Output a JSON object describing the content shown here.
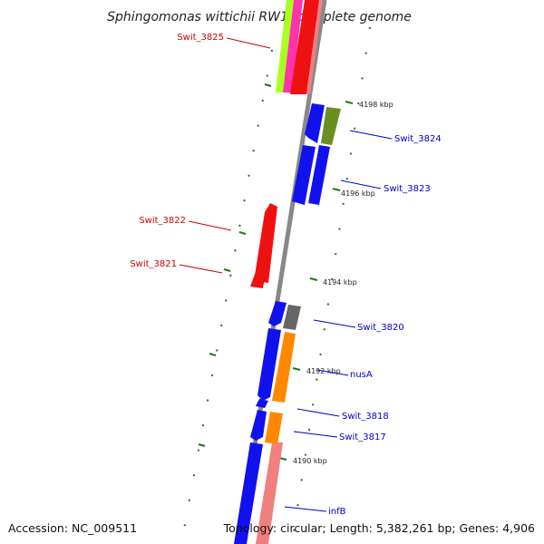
{
  "title": "Sphingomonas wittichii RW1, complete genome",
  "footer": {
    "accession": "Accession: NC_009511",
    "summary": "Topology: circular; Length: 5,382,261 bp; Genes: 4,906"
  },
  "ticks": [
    "4198 kbp",
    "4196 kbp",
    "4194 kbp",
    "4192 kbp",
    "4190 kbp"
  ],
  "genes": [
    {
      "name": "Swit_3825",
      "strand": "minus",
      "color": "#ee1111"
    },
    {
      "name": "Swit_3824",
      "strand": "plus",
      "color": "#1111ee"
    },
    {
      "name": "Swit_3823",
      "strand": "plus",
      "color": "#1111ee"
    },
    {
      "name": "Swit_3822",
      "strand": "minus",
      "color": "#ee1111"
    },
    {
      "name": "Swit_3821",
      "strand": "minus",
      "color": "#ee1111"
    },
    {
      "name": "Swit_3820",
      "strand": "plus",
      "color": "#1111ee"
    },
    {
      "name": "nusA",
      "strand": "plus",
      "color": "#1111ee"
    },
    {
      "name": "Swit_3818",
      "strand": "plus",
      "color": "#1111ee"
    },
    {
      "name": "Swit_3817",
      "strand": "plus",
      "color": "#1111ee"
    },
    {
      "name": "infB",
      "strand": "plus",
      "color": "#1111ee"
    }
  ],
  "colors": {
    "forward_label": "#0000cc",
    "reverse_label": "#cc0000",
    "backbone": "#888888",
    "tick_marks": "#1a7a1a",
    "cog_orange": "#ff8800",
    "cog_olive": "#6b8e23",
    "cog_gray": "#666666",
    "cog_pink": "#ff33aa",
    "cog_lime": "#aaff22",
    "cog_salmon": "#f08080"
  }
}
